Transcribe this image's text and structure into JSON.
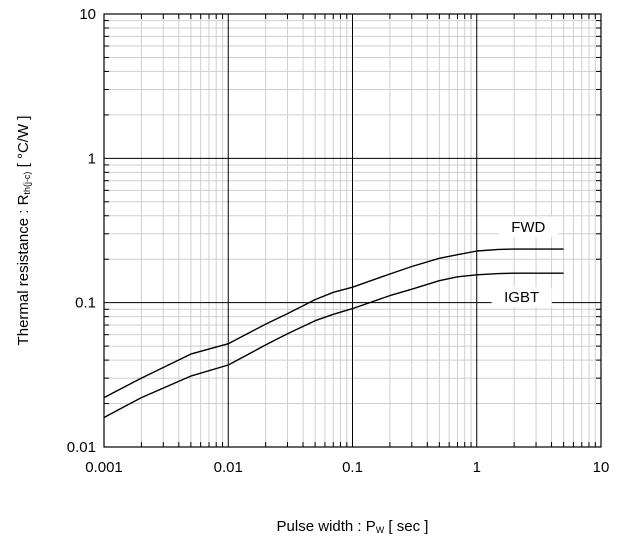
{
  "chart_data": {
    "type": "line",
    "x_scale": "log",
    "y_scale": "log",
    "xlim": [
      0.001,
      10
    ],
    "ylim": [
      0.01,
      10
    ],
    "grid": true,
    "xlabel": {
      "main": "Pulse width : P",
      "sub": "W",
      "unit": " [ sec ]"
    },
    "ylabel": {
      "main": "Thermal resistance : R",
      "sub": "th(j-c)",
      "unit": " [ °C/W ]"
    },
    "x_ticks": [
      {
        "value": 0.001,
        "label": "0.001"
      },
      {
        "value": 0.01,
        "label": "0.01"
      },
      {
        "value": 0.1,
        "label": "0.1"
      },
      {
        "value": 1,
        "label": "1"
      },
      {
        "value": 10,
        "label": "10"
      }
    ],
    "y_ticks": [
      {
        "value": 0.01,
        "label": "0.01"
      },
      {
        "value": 0.1,
        "label": "0.1"
      },
      {
        "value": 1,
        "label": "1"
      },
      {
        "value": 10,
        "label": "10"
      }
    ],
    "series": [
      {
        "name": "FWD",
        "label_at": {
          "x": 2.6,
          "y": 0.32
        },
        "x": [
          0.001,
          0.002,
          0.005,
          0.01,
          0.02,
          0.03,
          0.05,
          0.07,
          0.1,
          0.2,
          0.3,
          0.5,
          0.7,
          1,
          1.5,
          2,
          3,
          5
        ],
        "y": [
          0.022,
          0.03,
          0.044,
          0.052,
          0.071,
          0.084,
          0.105,
          0.118,
          0.128,
          0.158,
          0.178,
          0.203,
          0.215,
          0.228,
          0.234,
          0.235,
          0.235,
          0.235
        ]
      },
      {
        "name": "IGBT",
        "label_at": {
          "x": 2.3,
          "y": 0.104
        },
        "x": [
          0.001,
          0.002,
          0.005,
          0.01,
          0.02,
          0.03,
          0.05,
          0.07,
          0.1,
          0.2,
          0.3,
          0.5,
          0.7,
          1,
          1.5,
          2,
          3,
          5
        ],
        "y": [
          0.016,
          0.022,
          0.031,
          0.037,
          0.051,
          0.061,
          0.075,
          0.083,
          0.091,
          0.112,
          0.124,
          0.142,
          0.151,
          0.156,
          0.159,
          0.16,
          0.16,
          0.16
        ]
      }
    ]
  }
}
